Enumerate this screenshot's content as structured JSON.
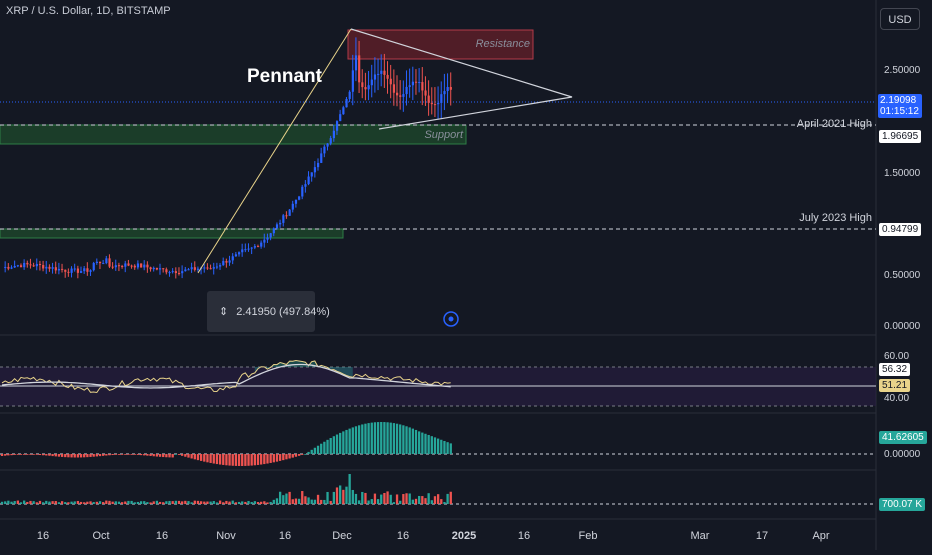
{
  "header": {
    "symbol_title": "XRP / U.S. Dollar, 1D, BITSTAMP",
    "currency_button": "USD"
  },
  "annotations": {
    "pattern_label": "Pennant",
    "resistance_label": "Resistance",
    "support_label": "Support",
    "april_label": "April 2021 High",
    "july_label": "July 2023 High",
    "measure_value": "2.41950 (497.84%)"
  },
  "badges": {
    "last_price": "2.19098",
    "countdown": "01:15:12",
    "april_value": "1.96695",
    "july_value": "0.94799",
    "rsi_value": "56.32",
    "rsi_ma_value": "51.21",
    "macd_value": "41.62605",
    "volume_value": "700.07 K"
  },
  "colors": {
    "background": "#141823",
    "up_candle": "#2962ff",
    "down_candle": "#ef5350",
    "price_badge": "#2962ff",
    "macd_up": "#26a69a",
    "macd_down": "#ef5350",
    "trendline": "#e8d38a"
  },
  "chart_data": [
    {
      "type": "candlestick",
      "y_ticks": [
        "2.50000",
        "1.50000",
        "0.50000",
        "0.00000"
      ],
      "y_tick_values": [
        2.5,
        1.5,
        0.5,
        0.0
      ],
      "ylim": [
        0,
        2.9
      ],
      "x_ticks": [
        "16",
        "Oct",
        "16",
        "Nov",
        "16",
        "Dec",
        "16",
        "2025",
        "16",
        "Feb",
        "Mar",
        "17",
        "Apr"
      ],
      "last_price": 2.19098,
      "levels": [
        {
          "name": "April 2021 High",
          "value": 1.96695
        },
        {
          "name": "July 2023 High",
          "value": 0.94799
        }
      ],
      "zones": [
        {
          "name": "Resistance",
          "low": 2.6,
          "high": 2.86
        },
        {
          "name": "Support",
          "low": 1.72,
          "high": 1.9
        },
        {
          "name": "",
          "low": 0.87,
          "high": 0.95
        }
      ],
      "measure": {
        "change": 2.4195,
        "percent": 497.84
      }
    },
    {
      "type": "line",
      "indicator": "RSI",
      "y_ticks": [
        "60.00",
        "40.00"
      ],
      "values": [
        56.32,
        51.21
      ]
    },
    {
      "type": "bar",
      "indicator": "MACD histogram",
      "y_ticks": [
        "0.00000"
      ],
      "value": 41.62605
    },
    {
      "type": "bar",
      "indicator": "Volume",
      "value": "700.07 K"
    }
  ]
}
